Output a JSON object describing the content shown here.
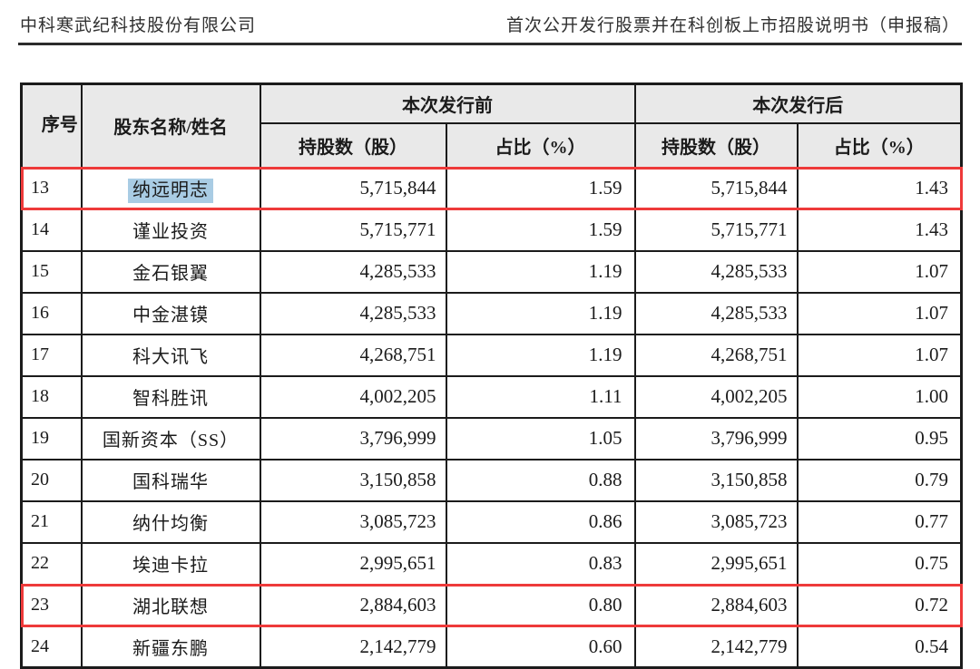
{
  "page_header": {
    "left": "中科寒武纪科技股份有限公司",
    "right": "首次公开发行股票并在科创板上市招股说明书（申报稿）"
  },
  "table": {
    "headers": {
      "index": "序号",
      "name": "股东名称/姓名",
      "before_group": "本次发行前",
      "after_group": "本次发行后",
      "shares": "持股数（股）",
      "ratio": "占比（%）"
    },
    "rows": [
      {
        "no": "13",
        "name": "纳远明志",
        "before_shares": "5,715,844",
        "before_ratio": "1.59",
        "after_shares": "5,715,844",
        "after_ratio": "1.43",
        "red_box": true,
        "name_selected": true
      },
      {
        "no": "14",
        "name": "谨业投资",
        "before_shares": "5,715,771",
        "before_ratio": "1.59",
        "after_shares": "5,715,771",
        "after_ratio": "1.43",
        "red_box": false,
        "name_selected": false
      },
      {
        "no": "15",
        "name": "金石银翼",
        "before_shares": "4,285,533",
        "before_ratio": "1.19",
        "after_shares": "4,285,533",
        "after_ratio": "1.07",
        "red_box": false,
        "name_selected": false
      },
      {
        "no": "16",
        "name": "中金湛镆",
        "before_shares": "4,285,533",
        "before_ratio": "1.19",
        "after_shares": "4,285,533",
        "after_ratio": "1.07",
        "red_box": false,
        "name_selected": false
      },
      {
        "no": "17",
        "name": "科大讯飞",
        "before_shares": "4,268,751",
        "before_ratio": "1.19",
        "after_shares": "4,268,751",
        "after_ratio": "1.07",
        "red_box": false,
        "name_selected": false
      },
      {
        "no": "18",
        "name": "智科胜讯",
        "before_shares": "4,002,205",
        "before_ratio": "1.11",
        "after_shares": "4,002,205",
        "after_ratio": "1.00",
        "red_box": false,
        "name_selected": false
      },
      {
        "no": "19",
        "name": "国新资本（SS）",
        "before_shares": "3,796,999",
        "before_ratio": "1.05",
        "after_shares": "3,796,999",
        "after_ratio": "0.95",
        "red_box": false,
        "name_selected": false
      },
      {
        "no": "20",
        "name": "国科瑞华",
        "before_shares": "3,150,858",
        "before_ratio": "0.88",
        "after_shares": "3,150,858",
        "after_ratio": "0.79",
        "red_box": false,
        "name_selected": false
      },
      {
        "no": "21",
        "name": "纳什均衡",
        "before_shares": "3,085,723",
        "before_ratio": "0.86",
        "after_shares": "3,085,723",
        "after_ratio": "0.77",
        "red_box": false,
        "name_selected": false
      },
      {
        "no": "22",
        "name": "埃迪卡拉",
        "before_shares": "2,995,651",
        "before_ratio": "0.83",
        "after_shares": "2,995,651",
        "after_ratio": "0.75",
        "red_box": false,
        "name_selected": false
      },
      {
        "no": "23",
        "name": "湖北联想",
        "before_shares": "2,884,603",
        "before_ratio": "0.80",
        "after_shares": "2,884,603",
        "after_ratio": "0.72",
        "red_box": true,
        "name_selected": false
      },
      {
        "no": "24",
        "name": "新疆东鹏",
        "before_shares": "2,142,779",
        "before_ratio": "0.60",
        "after_shares": "2,142,779",
        "after_ratio": "0.54",
        "red_box": false,
        "name_selected": false
      }
    ],
    "colors": {
      "annotation_red": "#ee3a3a",
      "selection_blue": "#a9cce4",
      "header_gray": "#e9e9e9"
    }
  }
}
